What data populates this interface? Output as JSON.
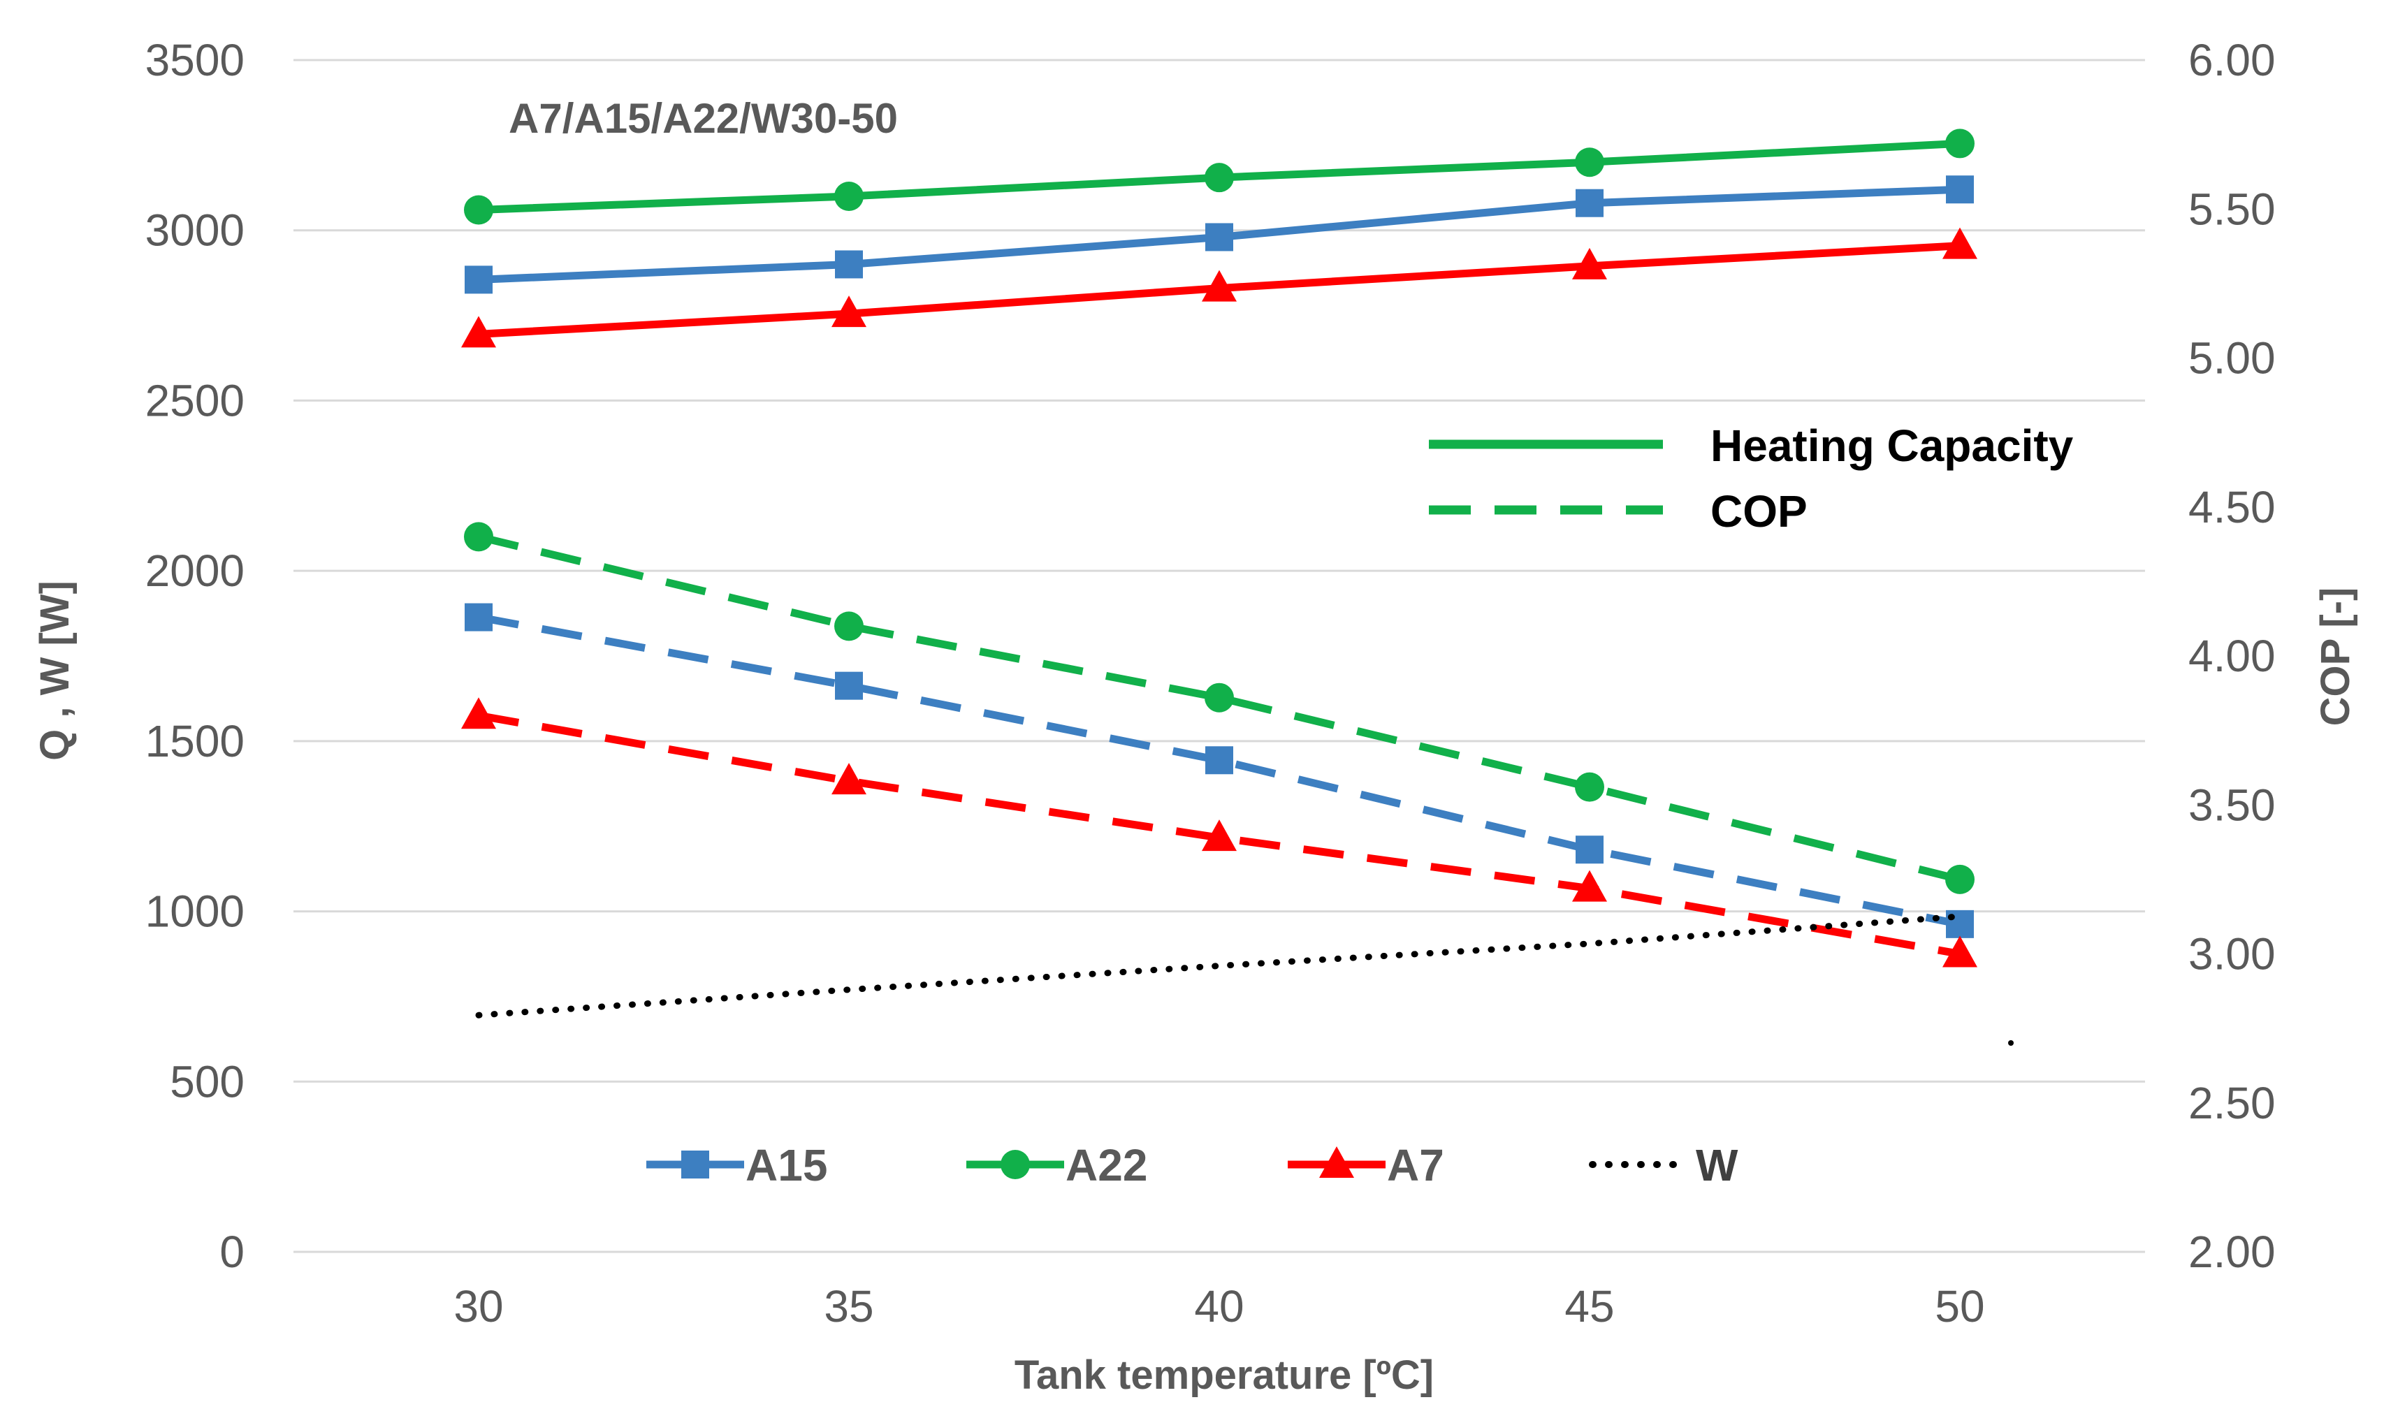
{
  "chart_data": {
    "type": "line",
    "title": "A7/A15/A22/W30-50",
    "xlabel": "Tank temperature  [ºC]",
    "ylabel_left": "Q , W  [W]",
    "ylabel_right": "COP  [-]",
    "x": [
      30,
      35,
      40,
      45,
      50
    ],
    "x_ticks": [
      "30",
      "35",
      "40",
      "45",
      "50"
    ],
    "xlim": [
      27.5,
      52.5
    ],
    "ylim_left": [
      0,
      3500
    ],
    "ylim_right": [
      2.0,
      6.0
    ],
    "y_ticks_left": [
      "0",
      "500",
      "1000",
      "1500",
      "2000",
      "2500",
      "3000",
      "3500"
    ],
    "y_ticks_right": [
      "2.00",
      "2.50",
      "3.00",
      "3.50",
      "4.00",
      "4.50",
      "5.00",
      "5.50",
      "6.00"
    ],
    "grid": true,
    "colors": {
      "A15": "#3D7FC1",
      "A22": "#11B04A",
      "A7": "#FF0000",
      "W": "#000000",
      "grid": "#D9D9D9",
      "text": "#595959"
    },
    "series": [
      {
        "name": "A22 Heating Capacity",
        "group": "A22",
        "kind": "capacity",
        "axis": "left",
        "marker": "circle",
        "values": [
          3060,
          3100,
          3155,
          3200,
          3255
        ]
      },
      {
        "name": "A15 Heating Capacity",
        "group": "A15",
        "kind": "capacity",
        "axis": "left",
        "marker": "square",
        "values": [
          2855,
          2900,
          2980,
          3080,
          3120
        ]
      },
      {
        "name": "A7 Heating Capacity",
        "group": "A7",
        "kind": "capacity",
        "axis": "left",
        "marker": "triangle",
        "values": [
          2695,
          2755,
          2830,
          2895,
          2955
        ]
      },
      {
        "name": "A22 COP",
        "group": "A22",
        "kind": "cop",
        "axis": "right",
        "marker": "circle",
        "values": [
          4.4,
          4.1,
          3.86,
          3.56,
          3.25
        ]
      },
      {
        "name": "A15 COP",
        "group": "A15",
        "kind": "cop",
        "axis": "right",
        "marker": "square",
        "values": [
          4.13,
          3.9,
          3.65,
          3.35,
          3.1
        ]
      },
      {
        "name": "A7 COP",
        "group": "A7",
        "kind": "cop",
        "axis": "right",
        "marker": "triangle",
        "values": [
          3.8,
          3.58,
          3.39,
          3.22,
          3.0
        ]
      },
      {
        "name": "W",
        "group": "W",
        "kind": "power",
        "axis": "left",
        "marker": "none",
        "values": [
          695,
          770,
          840,
          905,
          985
        ]
      }
    ],
    "legend_style": {
      "position": "center-right",
      "entries": [
        {
          "label": "Heating Capacity",
          "style": "solid"
        },
        {
          "label": "COP",
          "style": "dashed"
        }
      ]
    },
    "legend_series": {
      "position": "bottom",
      "entries": [
        {
          "label": "A15",
          "group": "A15",
          "marker": "square"
        },
        {
          "label": "A22",
          "group": "A22",
          "marker": "circle"
        },
        {
          "label": "A7",
          "group": "A7",
          "marker": "triangle"
        },
        {
          "label": "W",
          "group": "W",
          "marker": "none"
        }
      ]
    }
  }
}
